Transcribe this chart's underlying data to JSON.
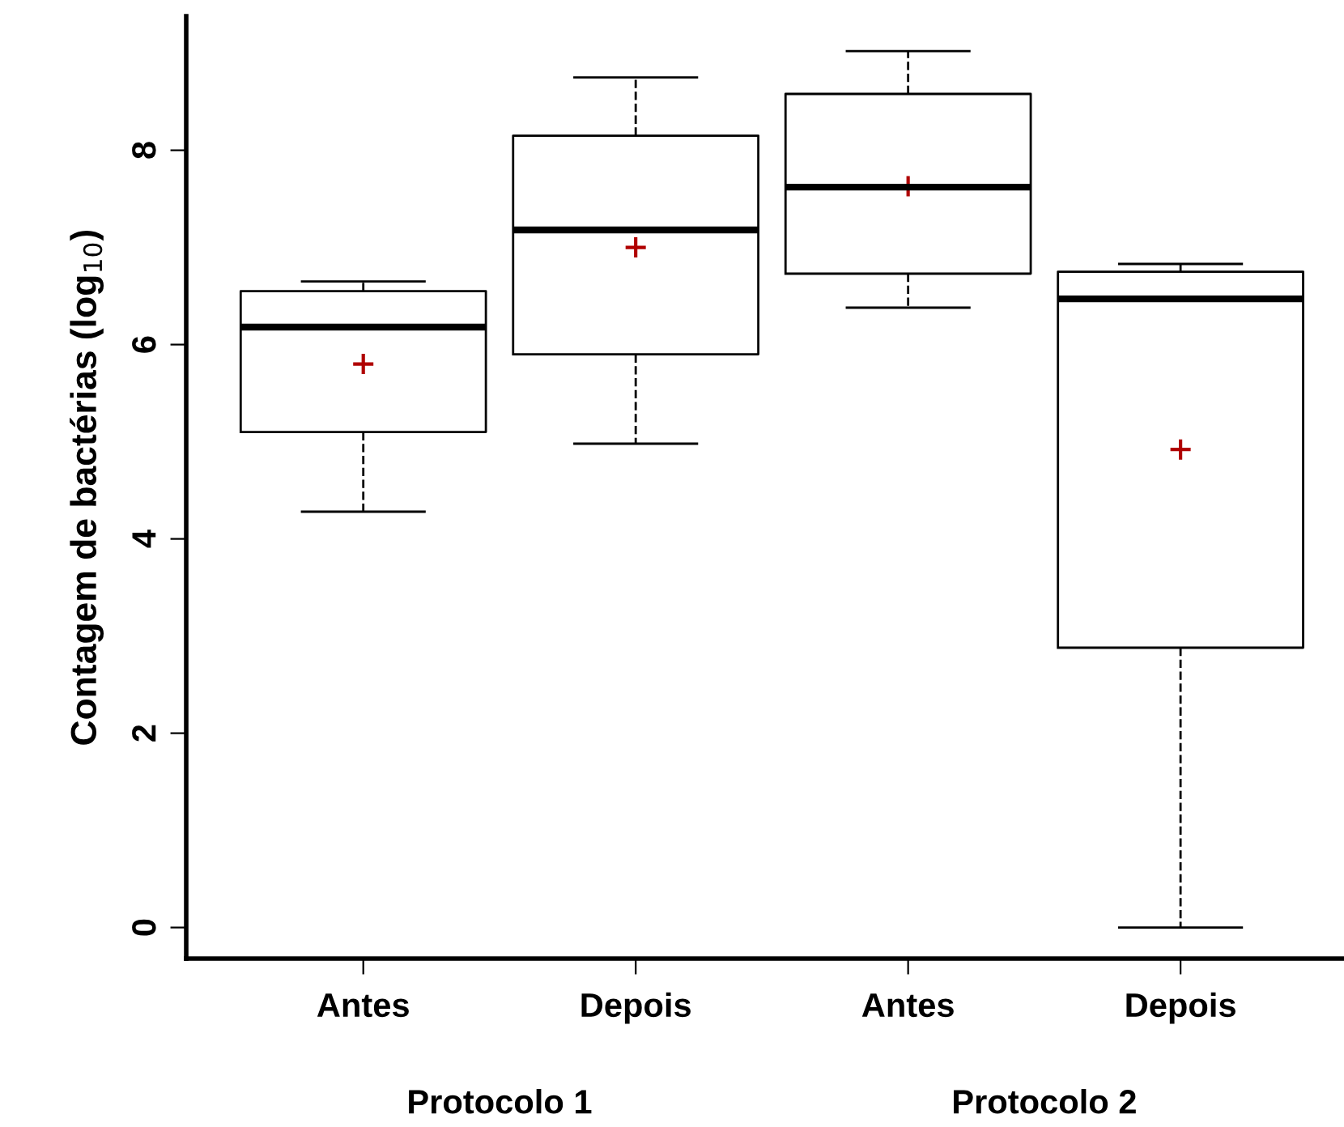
{
  "chart_data": {
    "type": "box",
    "ylabel": "Contagem de bactérias (log$_{10}$)",
    "categories": [
      "Antes",
      "Depois",
      "Antes",
      "Depois"
    ],
    "boxes": [
      {
        "low": 4.28,
        "q1": 5.1,
        "median": 6.18,
        "q3": 6.55,
        "high": 6.65,
        "mean": 5.8
      },
      {
        "low": 4.98,
        "q1": 5.9,
        "median": 7.18,
        "q3": 8.15,
        "high": 8.75,
        "mean": 7.0
      },
      {
        "low": 6.38,
        "q1": 6.73,
        "median": 7.62,
        "q3": 8.58,
        "high": 9.02,
        "mean": 7.63
      },
      {
        "low": 0,
        "q1": 2.88,
        "median": 6.47,
        "q3": 6.75,
        "high": 6.83,
        "mean": 4.92
      }
    ],
    "ylim": [
      -0.32,
      9.38
    ],
    "yticks": [
      0,
      2,
      4,
      6,
      8
    ],
    "grid": false,
    "annotations": [
      "Protocolo 1",
      "Protocolo 2"
    ]
  }
}
